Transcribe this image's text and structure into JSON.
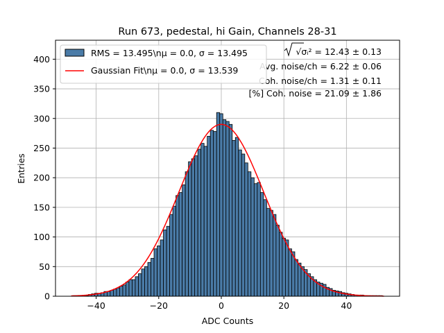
{
  "chart_data": {
    "type": "bar",
    "title": "Run 673, pedestal, hi Gain, Channels 28-31",
    "xlabel": "ADC Counts",
    "ylabel": "Entries",
    "xlim": [
      -53,
      57
    ],
    "ylim": [
      0,
      432
    ],
    "xticks": [
      -40,
      -20,
      0,
      20,
      40
    ],
    "yticks": [
      0,
      50,
      100,
      150,
      200,
      250,
      300,
      350,
      400
    ],
    "grid": true,
    "bin_width": 1,
    "bins": {
      "x": [
        -47,
        -46,
        -45,
        -44,
        -43,
        -42,
        -41,
        -40,
        -39,
        -38,
        -37,
        -36,
        -35,
        -34,
        -33,
        -32,
        -31,
        -30,
        -29,
        -28,
        -27,
        -26,
        -25,
        -24,
        -23,
        -22,
        -21,
        -20,
        -19,
        -18,
        -17,
        -16,
        -15,
        -14,
        -13,
        -12,
        -11,
        -10,
        -9,
        -8,
        -7,
        -6,
        -5,
        -4,
        -3,
        -2,
        -1,
        0,
        1,
        2,
        3,
        4,
        5,
        6,
        7,
        8,
        9,
        10,
        11,
        12,
        13,
        14,
        15,
        16,
        17,
        18,
        19,
        20,
        21,
        22,
        23,
        24,
        25,
        26,
        27,
        28,
        29,
        30,
        31,
        32,
        33,
        34,
        35,
        36,
        37,
        38,
        39,
        40,
        41,
        42,
        43,
        44,
        45,
        46,
        47,
        48,
        49,
        50,
        51
      ],
      "values": [
        1,
        1,
        1,
        1,
        1,
        3,
        4,
        5,
        5,
        6,
        8,
        8,
        10,
        12,
        14,
        17,
        19,
        24,
        28,
        28,
        33,
        38,
        46,
        50,
        57,
        64,
        80,
        85,
        95,
        112,
        118,
        138,
        152,
        170,
        175,
        188,
        210,
        227,
        232,
        237,
        248,
        258,
        253,
        270,
        280,
        278,
        310,
        308,
        298,
        295,
        290,
        263,
        268,
        247,
        240,
        225,
        210,
        200,
        190,
        192,
        175,
        163,
        148,
        145,
        138,
        120,
        108,
        98,
        95,
        80,
        75,
        62,
        56,
        50,
        45,
        38,
        33,
        28,
        24,
        22,
        20,
        15,
        13,
        10,
        9,
        8,
        6,
        5,
        4,
        3,
        2,
        2,
        2,
        1,
        1,
        1,
        1,
        1,
        1
      ]
    },
    "series": [
      {
        "name": "RMS = 13.495\\nμ = 0.0, σ = 13.495",
        "kind": "histogram",
        "color": "#4a7ba7",
        "edge_color": "#000000"
      },
      {
        "name": "Gaussian Fit\\nμ = 0.0, σ = 13.539",
        "kind": "line",
        "color": "#ff0000",
        "amplitude": 290,
        "mu": 0.0,
        "sigma": 13.539,
        "x_range": [
          -48,
          52
        ]
      }
    ],
    "legend": {
      "position": "top-left",
      "entries": [
        "RMS = 13.495\\nμ = 0.0, σ = 13.495",
        "Gaussian Fit\\nμ = 0.0, σ = 13.539"
      ]
    },
    "annotations": {
      "position": "top-right",
      "lines": [
        "√σᵢ² = 12.43 ± 0.13",
        "Avg. noise/ch = 6.22 ± 0.06",
        "Coh. noise/ch = 1.31 ± 0.11",
        "[%] Coh. noise = 21.09 ± 1.86"
      ]
    }
  }
}
